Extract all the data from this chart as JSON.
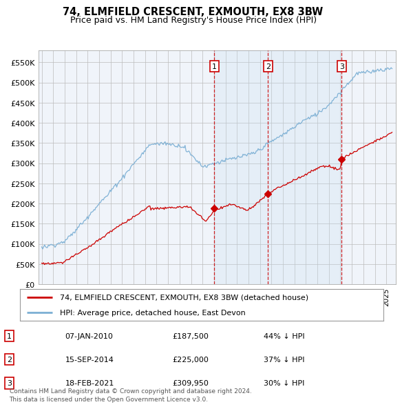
{
  "title": "74, ELMFIELD CRESCENT, EXMOUTH, EX8 3BW",
  "subtitle": "Price paid vs. HM Land Registry's House Price Index (HPI)",
  "hpi_color": "#7bafd4",
  "hpi_fill_color": "#d6e8f5",
  "price_color": "#cc0000",
  "vline_color": "#cc0000",
  "sale_dates_num": [
    2010.03,
    2014.71,
    2021.12
  ],
  "sale_prices": [
    187500,
    225000,
    309950
  ],
  "sale_labels": [
    "1",
    "2",
    "3"
  ],
  "ylim": [
    0,
    580000
  ],
  "yticks": [
    0,
    50000,
    100000,
    150000,
    200000,
    250000,
    300000,
    350000,
    400000,
    450000,
    500000,
    550000
  ],
  "ytick_labels": [
    "£0",
    "£50K",
    "£100K",
    "£150K",
    "£200K",
    "£250K",
    "£300K",
    "£350K",
    "£400K",
    "£450K",
    "£500K",
    "£550K"
  ],
  "xlim_start": 1994.7,
  "xlim_end": 2025.8,
  "legend_entries": [
    {
      "label": "74, ELMFIELD CRESCENT, EXMOUTH, EX8 3BW (detached house)",
      "color": "#cc0000"
    },
    {
      "label": "HPI: Average price, detached house, East Devon",
      "color": "#7bafd4"
    }
  ],
  "table_rows": [
    {
      "num": "1",
      "date": "07-JAN-2010",
      "price": "£187,500",
      "pct": "44% ↓ HPI"
    },
    {
      "num": "2",
      "date": "15-SEP-2014",
      "price": "£225,000",
      "pct": "37% ↓ HPI"
    },
    {
      "num": "3",
      "date": "18-FEB-2021",
      "price": "£309,950",
      "pct": "30% ↓ HPI"
    }
  ],
  "footnote": "Contains HM Land Registry data © Crown copyright and database right 2024.\nThis data is licensed under the Open Government Licence v3.0.",
  "bg_color": "#f0f4fa"
}
